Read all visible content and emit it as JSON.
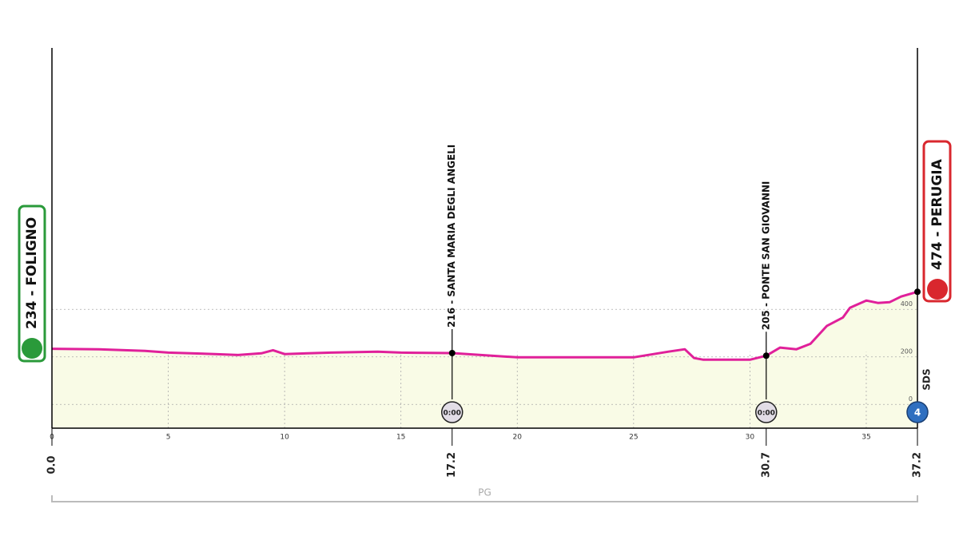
{
  "chart_data": {
    "type": "area",
    "x": [
      0,
      2,
      4,
      5,
      7,
      8,
      9,
      9.5,
      10,
      12,
      14,
      15,
      17.2,
      20,
      25,
      26.5,
      27.2,
      27.6,
      28,
      30,
      30.7,
      31.3,
      32,
      32.6,
      33.3,
      34,
      34.3,
      35,
      35.5,
      36,
      36.5,
      37.2
    ],
    "values": [
      234,
      232,
      225,
      218,
      212,
      208,
      215,
      228,
      212,
      218,
      222,
      218,
      216,
      198,
      198,
      222,
      232,
      195,
      188,
      188,
      205,
      239,
      232,
      255,
      330,
      366,
      407,
      437,
      427,
      430,
      454,
      474
    ],
    "color": "#e0209a",
    "fill": "#f9fbe6",
    "xlim": [
      0,
      37.2
    ],
    "ylim": [
      -100,
      1500
    ],
    "xticks": [
      0,
      5,
      10,
      15,
      20,
      25,
      30,
      35
    ],
    "yticks": [
      0,
      200,
      400
    ],
    "km_markers": [
      {
        "value": 0,
        "label": "0.0"
      },
      17.2,
      30.7,
      37.2
    ],
    "start": {
      "label": "234 - FOLIGNO"
    },
    "finish": {
      "label": "474 - PERUGIA"
    },
    "intermediates": [
      {
        "km": 17.2,
        "altitude": 216,
        "label": "216 - SANTA MARIA DEGLI ANGELI",
        "timer": "0:00"
      },
      {
        "km": 30.7,
        "altitude": 205,
        "label": "205 - PONTE SAN GIOVANNI",
        "timer": "0:00"
      }
    ],
    "side_label": "SDS",
    "badge": "4",
    "region": "PG"
  }
}
